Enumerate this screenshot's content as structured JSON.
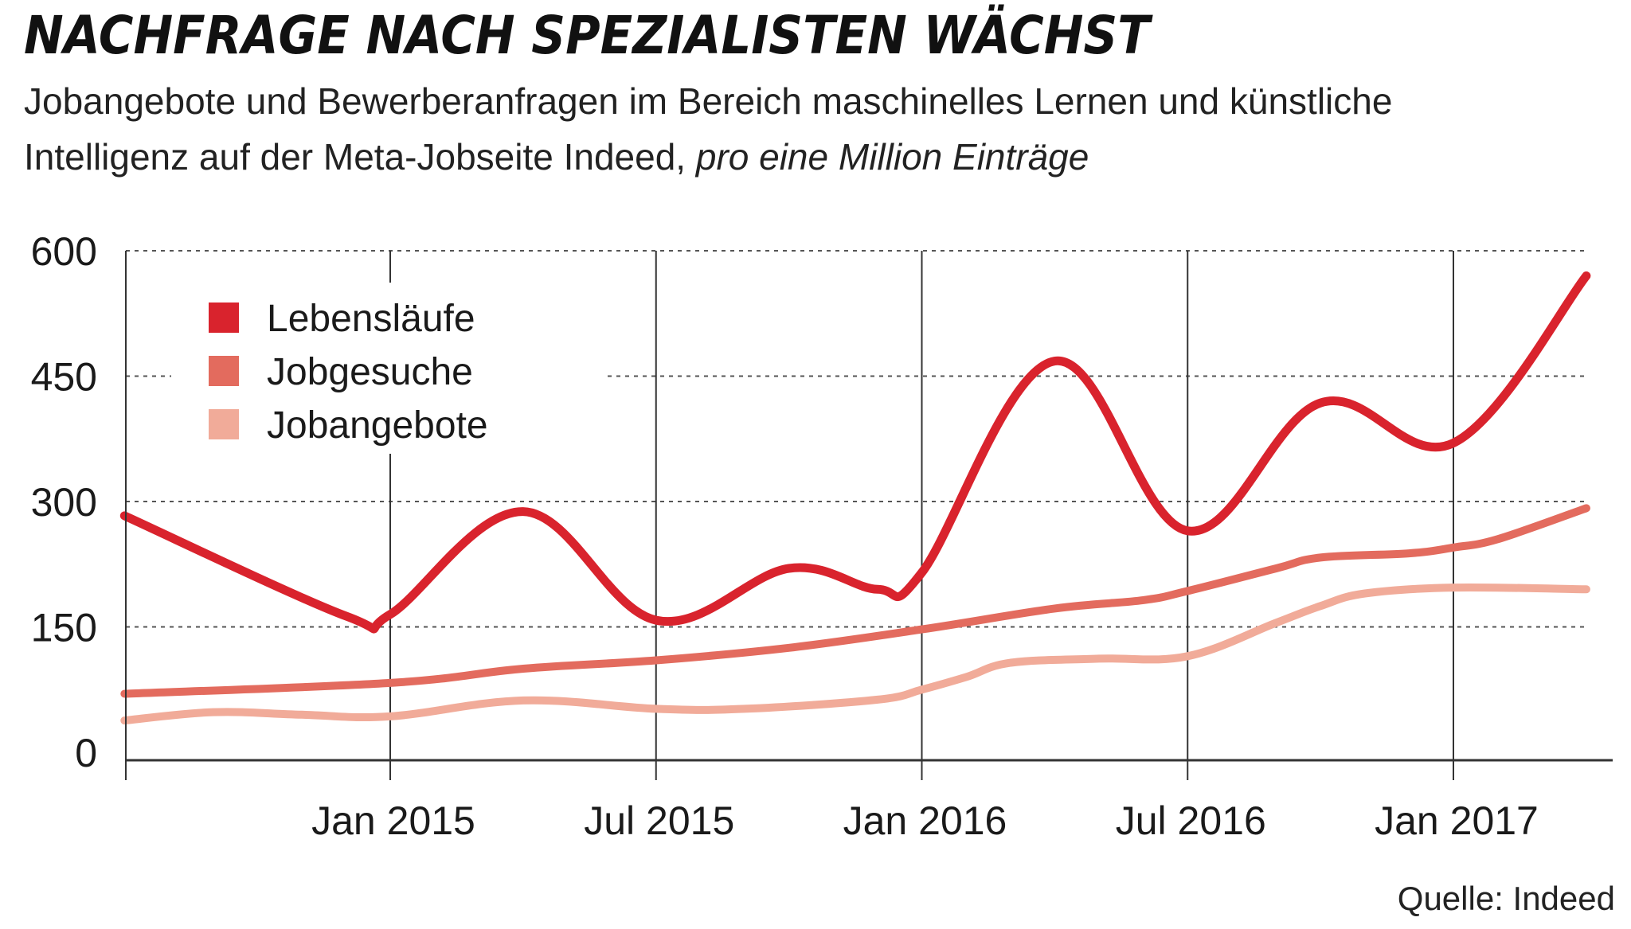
{
  "title": "NACHFRAGE NACH SPEZIALISTEN WÄCHST",
  "subtitle_line1": "Jobangebote und Bewerberanfragen im Bereich maschinelles Lernen und künstliche",
  "subtitle_line2": "Intelligenz auf der Meta-Jobseite Indeed,",
  "subtitle_italic": "pro eine Million Einträge",
  "source": "Quelle: Indeed",
  "chart_data": {
    "type": "line",
    "ylim": [
      0,
      600
    ],
    "yticks": [
      0,
      150,
      300,
      450,
      600
    ],
    "xticks": [
      {
        "month": 12,
        "label": "Jan 2015"
      },
      {
        "month": 18,
        "label": "Jul 2015"
      },
      {
        "month": 24,
        "label": "Jan 2016"
      },
      {
        "month": 30,
        "label": "Jul 2016"
      },
      {
        "month": 36,
        "label": "Jan 2017"
      }
    ],
    "xrange_month": [
      6,
      39
    ],
    "grid": true,
    "legend_position": "top-left",
    "series": [
      {
        "name": "Lebensläufe",
        "color": "#d9232d",
        "points": [
          [
            6,
            283
          ],
          [
            11,
            163
          ],
          [
            12,
            165
          ],
          [
            15,
            288
          ],
          [
            18,
            158
          ],
          [
            21,
            220
          ],
          [
            23,
            195
          ],
          [
            24,
            215
          ],
          [
            27,
            468
          ],
          [
            30,
            265
          ],
          [
            33,
            418
          ],
          [
            36,
            370
          ],
          [
            39,
            570
          ]
        ]
      },
      {
        "name": "Jobgesuche",
        "color": "#e36b5e",
        "points": [
          [
            6,
            70
          ],
          [
            12,
            83
          ],
          [
            15,
            100
          ],
          [
            18,
            110
          ],
          [
            21,
            125
          ],
          [
            24,
            147
          ],
          [
            27,
            172
          ],
          [
            29,
            182
          ],
          [
            30,
            193
          ],
          [
            32,
            220
          ],
          [
            33,
            233
          ],
          [
            35,
            238
          ],
          [
            36,
            245
          ],
          [
            37,
            255
          ],
          [
            39,
            292
          ]
        ]
      },
      {
        "name": "Jobangebote",
        "color": "#f1ab99",
        "points": [
          [
            6,
            38
          ],
          [
            8,
            48
          ],
          [
            10,
            45
          ],
          [
            12,
            43
          ],
          [
            15,
            62
          ],
          [
            18,
            52
          ],
          [
            20,
            52
          ],
          [
            23,
            63
          ],
          [
            24,
            75
          ],
          [
            25,
            90
          ],
          [
            26,
            107
          ],
          [
            28,
            112
          ],
          [
            30,
            115
          ],
          [
            32,
            155
          ],
          [
            33,
            175
          ],
          [
            34,
            190
          ],
          [
            36,
            197
          ],
          [
            39,
            195
          ]
        ]
      }
    ]
  }
}
